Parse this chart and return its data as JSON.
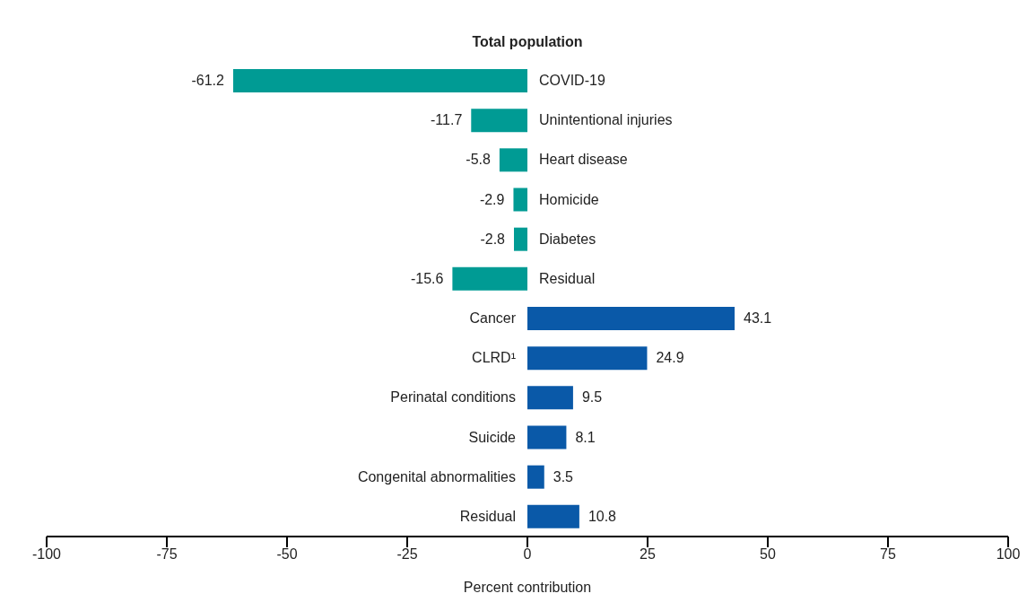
{
  "chart_data": {
    "type": "bar",
    "orientation": "horizontal",
    "title": "Total population",
    "xlabel": "Percent contribution",
    "categories": [
      "COVID-19",
      "Unintentional injuries",
      "Heart disease",
      "Homicide",
      "Diabetes",
      "Residual",
      "Cancer",
      "CLRD¹",
      "Perinatal conditions",
      "Suicide",
      "Congenital abnormalities",
      "Residual"
    ],
    "values": [
      -61.2,
      -11.7,
      -5.8,
      -2.9,
      -2.8,
      -15.6,
      43.1,
      24.9,
      9.5,
      8.1,
      3.5,
      10.8
    ],
    "colors": [
      "#009b94",
      "#009b94",
      "#009b94",
      "#009b94",
      "#009b94",
      "#009b94",
      "#0a59a8",
      "#0a59a8",
      "#0a59a8",
      "#0a59a8",
      "#0a59a8",
      "#0a59a8"
    ],
    "xlim": [
      -100,
      100
    ],
    "xticks": [
      -100,
      -75,
      -50,
      -25,
      0,
      25,
      50,
      75,
      100
    ],
    "data_labels": true
  }
}
